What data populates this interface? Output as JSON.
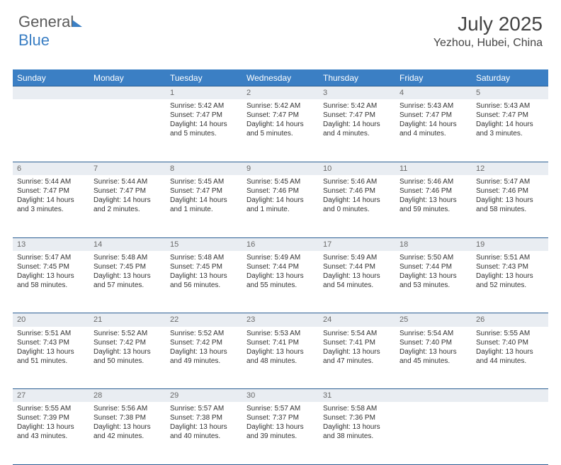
{
  "logo": {
    "part1": "General",
    "part2": "Blue"
  },
  "header": {
    "month_title": "July 2025",
    "location": "Yezhou, Hubei, China"
  },
  "calendar": {
    "day_headers": [
      "Sunday",
      "Monday",
      "Tuesday",
      "Wednesday",
      "Thursday",
      "Friday",
      "Saturday"
    ],
    "header_bg": "#3b7fc4",
    "header_text_color": "#ffffff",
    "daynum_bg": "#e9edf2",
    "rule_color": "#2b5e93",
    "weeks": [
      [
        {
          "n": "",
          "sr": "",
          "ss": "",
          "dl": ""
        },
        {
          "n": "",
          "sr": "",
          "ss": "",
          "dl": ""
        },
        {
          "n": "1",
          "sr": "Sunrise: 5:42 AM",
          "ss": "Sunset: 7:47 PM",
          "dl": "Daylight: 14 hours and 5 minutes."
        },
        {
          "n": "2",
          "sr": "Sunrise: 5:42 AM",
          "ss": "Sunset: 7:47 PM",
          "dl": "Daylight: 14 hours and 5 minutes."
        },
        {
          "n": "3",
          "sr": "Sunrise: 5:42 AM",
          "ss": "Sunset: 7:47 PM",
          "dl": "Daylight: 14 hours and 4 minutes."
        },
        {
          "n": "4",
          "sr": "Sunrise: 5:43 AM",
          "ss": "Sunset: 7:47 PM",
          "dl": "Daylight: 14 hours and 4 minutes."
        },
        {
          "n": "5",
          "sr": "Sunrise: 5:43 AM",
          "ss": "Sunset: 7:47 PM",
          "dl": "Daylight: 14 hours and 3 minutes."
        }
      ],
      [
        {
          "n": "6",
          "sr": "Sunrise: 5:44 AM",
          "ss": "Sunset: 7:47 PM",
          "dl": "Daylight: 14 hours and 3 minutes."
        },
        {
          "n": "7",
          "sr": "Sunrise: 5:44 AM",
          "ss": "Sunset: 7:47 PM",
          "dl": "Daylight: 14 hours and 2 minutes."
        },
        {
          "n": "8",
          "sr": "Sunrise: 5:45 AM",
          "ss": "Sunset: 7:47 PM",
          "dl": "Daylight: 14 hours and 1 minute."
        },
        {
          "n": "9",
          "sr": "Sunrise: 5:45 AM",
          "ss": "Sunset: 7:46 PM",
          "dl": "Daylight: 14 hours and 1 minute."
        },
        {
          "n": "10",
          "sr": "Sunrise: 5:46 AM",
          "ss": "Sunset: 7:46 PM",
          "dl": "Daylight: 14 hours and 0 minutes."
        },
        {
          "n": "11",
          "sr": "Sunrise: 5:46 AM",
          "ss": "Sunset: 7:46 PM",
          "dl": "Daylight: 13 hours and 59 minutes."
        },
        {
          "n": "12",
          "sr": "Sunrise: 5:47 AM",
          "ss": "Sunset: 7:46 PM",
          "dl": "Daylight: 13 hours and 58 minutes."
        }
      ],
      [
        {
          "n": "13",
          "sr": "Sunrise: 5:47 AM",
          "ss": "Sunset: 7:45 PM",
          "dl": "Daylight: 13 hours and 58 minutes."
        },
        {
          "n": "14",
          "sr": "Sunrise: 5:48 AM",
          "ss": "Sunset: 7:45 PM",
          "dl": "Daylight: 13 hours and 57 minutes."
        },
        {
          "n": "15",
          "sr": "Sunrise: 5:48 AM",
          "ss": "Sunset: 7:45 PM",
          "dl": "Daylight: 13 hours and 56 minutes."
        },
        {
          "n": "16",
          "sr": "Sunrise: 5:49 AM",
          "ss": "Sunset: 7:44 PM",
          "dl": "Daylight: 13 hours and 55 minutes."
        },
        {
          "n": "17",
          "sr": "Sunrise: 5:49 AM",
          "ss": "Sunset: 7:44 PM",
          "dl": "Daylight: 13 hours and 54 minutes."
        },
        {
          "n": "18",
          "sr": "Sunrise: 5:50 AM",
          "ss": "Sunset: 7:44 PM",
          "dl": "Daylight: 13 hours and 53 minutes."
        },
        {
          "n": "19",
          "sr": "Sunrise: 5:51 AM",
          "ss": "Sunset: 7:43 PM",
          "dl": "Daylight: 13 hours and 52 minutes."
        }
      ],
      [
        {
          "n": "20",
          "sr": "Sunrise: 5:51 AM",
          "ss": "Sunset: 7:43 PM",
          "dl": "Daylight: 13 hours and 51 minutes."
        },
        {
          "n": "21",
          "sr": "Sunrise: 5:52 AM",
          "ss": "Sunset: 7:42 PM",
          "dl": "Daylight: 13 hours and 50 minutes."
        },
        {
          "n": "22",
          "sr": "Sunrise: 5:52 AM",
          "ss": "Sunset: 7:42 PM",
          "dl": "Daylight: 13 hours and 49 minutes."
        },
        {
          "n": "23",
          "sr": "Sunrise: 5:53 AM",
          "ss": "Sunset: 7:41 PM",
          "dl": "Daylight: 13 hours and 48 minutes."
        },
        {
          "n": "24",
          "sr": "Sunrise: 5:54 AM",
          "ss": "Sunset: 7:41 PM",
          "dl": "Daylight: 13 hours and 47 minutes."
        },
        {
          "n": "25",
          "sr": "Sunrise: 5:54 AM",
          "ss": "Sunset: 7:40 PM",
          "dl": "Daylight: 13 hours and 45 minutes."
        },
        {
          "n": "26",
          "sr": "Sunrise: 5:55 AM",
          "ss": "Sunset: 7:40 PM",
          "dl": "Daylight: 13 hours and 44 minutes."
        }
      ],
      [
        {
          "n": "27",
          "sr": "Sunrise: 5:55 AM",
          "ss": "Sunset: 7:39 PM",
          "dl": "Daylight: 13 hours and 43 minutes."
        },
        {
          "n": "28",
          "sr": "Sunrise: 5:56 AM",
          "ss": "Sunset: 7:38 PM",
          "dl": "Daylight: 13 hours and 42 minutes."
        },
        {
          "n": "29",
          "sr": "Sunrise: 5:57 AM",
          "ss": "Sunset: 7:38 PM",
          "dl": "Daylight: 13 hours and 40 minutes."
        },
        {
          "n": "30",
          "sr": "Sunrise: 5:57 AM",
          "ss": "Sunset: 7:37 PM",
          "dl": "Daylight: 13 hours and 39 minutes."
        },
        {
          "n": "31",
          "sr": "Sunrise: 5:58 AM",
          "ss": "Sunset: 7:36 PM",
          "dl": "Daylight: 13 hours and 38 minutes."
        },
        {
          "n": "",
          "sr": "",
          "ss": "",
          "dl": ""
        },
        {
          "n": "",
          "sr": "",
          "ss": "",
          "dl": ""
        }
      ]
    ]
  }
}
